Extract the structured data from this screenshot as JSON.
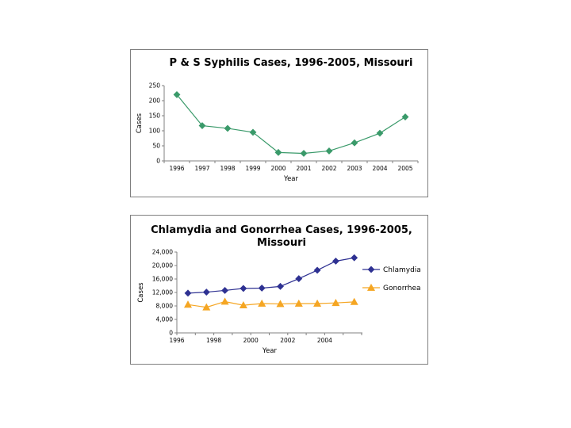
{
  "chart_data": [
    {
      "type": "line",
      "title": "P & S Syphilis Cases, 1996-2005, Missouri",
      "xlabel": "Year",
      "ylabel": "Cases",
      "categories": [
        "1996",
        "1997",
        "1998",
        "1999",
        "2000",
        "2001",
        "2002",
        "2003",
        "2004",
        "2005"
      ],
      "series": [
        {
          "name": "P & S Syphilis",
          "values": [
            220,
            117,
            108,
            95,
            28,
            25,
            33,
            60,
            92,
            146
          ],
          "color": "#3a9a6a",
          "marker": "diamond"
        }
      ],
      "yticks": [
        "0",
        "50",
        "100",
        "150",
        "200",
        "250"
      ],
      "ylim": [
        0,
        250
      ],
      "legend": "none"
    },
    {
      "type": "line",
      "title_lines": [
        "Chlamydia and Gonorrhea Cases, 1996-2005,",
        "Missouri"
      ],
      "xlabel": "Year",
      "ylabel": "Cases",
      "categories": [
        "1996",
        "1997",
        "1998",
        "1999",
        "2000",
        "2001",
        "2002",
        "2003",
        "2004",
        "2005"
      ],
      "xtick_labels": [
        "1996",
        "1998",
        "2000",
        "2002",
        "2004"
      ],
      "series": [
        {
          "name": "Chlamydia",
          "values": [
            11800,
            12100,
            12600,
            13200,
            13300,
            13800,
            16100,
            18600,
            21300,
            22300
          ],
          "color": "#2e3192",
          "marker": "diamond"
        },
        {
          "name": "Gonorrhea",
          "values": [
            8400,
            7600,
            9300,
            8200,
            8700,
            8600,
            8700,
            8700,
            8900,
            9200
          ],
          "color": "#f5a623",
          "marker": "triangle"
        }
      ],
      "yticks": [
        "0",
        "4,000",
        "8,000",
        "12,000",
        "16,000",
        "20,000",
        "24,000"
      ],
      "ylim": [
        0,
        24000
      ],
      "legend": "right"
    }
  ]
}
